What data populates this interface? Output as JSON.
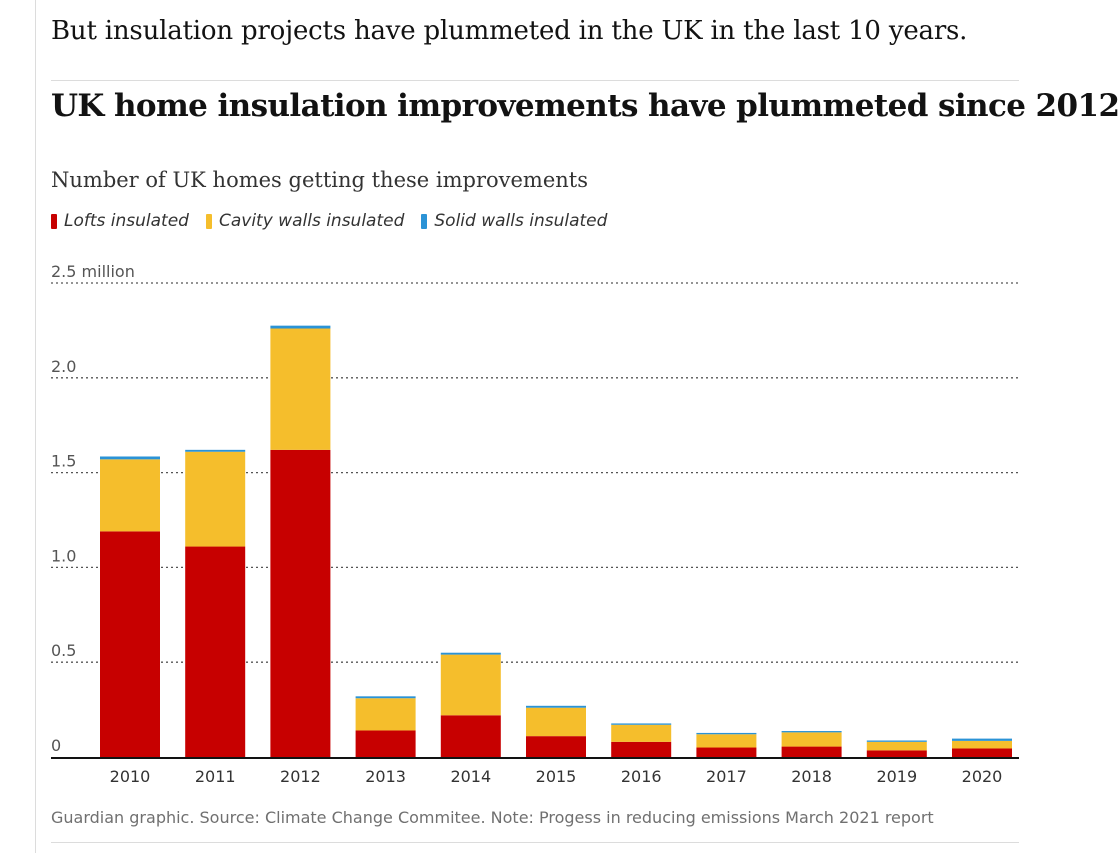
{
  "intro_text": "But insulation projects have plummeted in the UK in the last 10 years.",
  "chart_data": {
    "type": "bar",
    "stacked": true,
    "title": "UK home insulation improvements have plummeted since 2012",
    "subtitle": "Number of UK homes getting these improvements",
    "categories": [
      "2010",
      "2011",
      "2012",
      "2013",
      "2014",
      "2015",
      "2016",
      "2017",
      "2018",
      "2019",
      "2020"
    ],
    "series": [
      {
        "name": "Lofts insulated",
        "color": "#c70000",
        "values": [
          1.19,
          1.11,
          1.62,
          0.14,
          0.22,
          0.11,
          0.08,
          0.05,
          0.055,
          0.035,
          0.045
        ]
      },
      {
        "name": "Cavity walls insulated",
        "color": "#f5be2c",
        "values": [
          0.38,
          0.5,
          0.64,
          0.17,
          0.32,
          0.15,
          0.09,
          0.07,
          0.075,
          0.045,
          0.04
        ]
      },
      {
        "name": "Solid walls insulated",
        "color": "#2b93d6",
        "values": [
          0.015,
          0.01,
          0.015,
          0.01,
          0.01,
          0.01,
          0.007,
          0.007,
          0.007,
          0.007,
          0.012
        ]
      }
    ],
    "yticks": [
      {
        "value": 0,
        "label": "0"
      },
      {
        "value": 0.5,
        "label": "0.5"
      },
      {
        "value": 1.0,
        "label": "1.0"
      },
      {
        "value": 1.5,
        "label": "1.5"
      },
      {
        "value": 2.0,
        "label": "2.0"
      },
      {
        "value": 2.5,
        "label": "2.5 million"
      }
    ],
    "ylim": [
      0,
      2.5
    ],
    "grid": true,
    "legend_position": "top-left"
  },
  "source_text": "Guardian graphic. Source: Climate Change Commitee. Note: Progess in reducing emissions March 2021 report"
}
